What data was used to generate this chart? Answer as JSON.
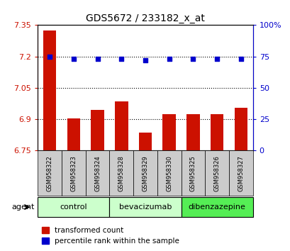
{
  "title": "GDS5672 / 233182_x_at",
  "samples": [
    "GSM958322",
    "GSM958323",
    "GSM958324",
    "GSM958328",
    "GSM958329",
    "GSM958330",
    "GSM958325",
    "GSM958326",
    "GSM958327"
  ],
  "red_values": [
    7.325,
    6.905,
    6.945,
    6.985,
    6.835,
    6.925,
    6.925,
    6.925,
    6.955
  ],
  "blue_values": [
    75,
    73,
    73,
    73,
    72,
    73,
    73,
    73,
    73
  ],
  "ylim_left": [
    6.75,
    7.35
  ],
  "ylim_right": [
    0,
    100
  ],
  "yticks_left": [
    6.75,
    6.9,
    7.05,
    7.2,
    7.35
  ],
  "yticks_right": [
    0,
    25,
    50,
    75,
    100
  ],
  "groups": [
    {
      "label": "control",
      "indices": [
        0,
        1,
        2
      ],
      "color": "#ccffcc"
    },
    {
      "label": "bevacizumab",
      "indices": [
        3,
        4,
        5
      ],
      "color": "#ccffcc"
    },
    {
      "label": "dibenzazepine",
      "indices": [
        6,
        7,
        8
      ],
      "color": "#55ee55"
    }
  ],
  "bar_color": "#cc1100",
  "dot_color": "#0000cc",
  "legend_red_label": "transformed count",
  "legend_blue_label": "percentile rank within the sample",
  "agent_label": "agent",
  "sample_bg_color": "#cccccc",
  "background_color": "#ffffff"
}
